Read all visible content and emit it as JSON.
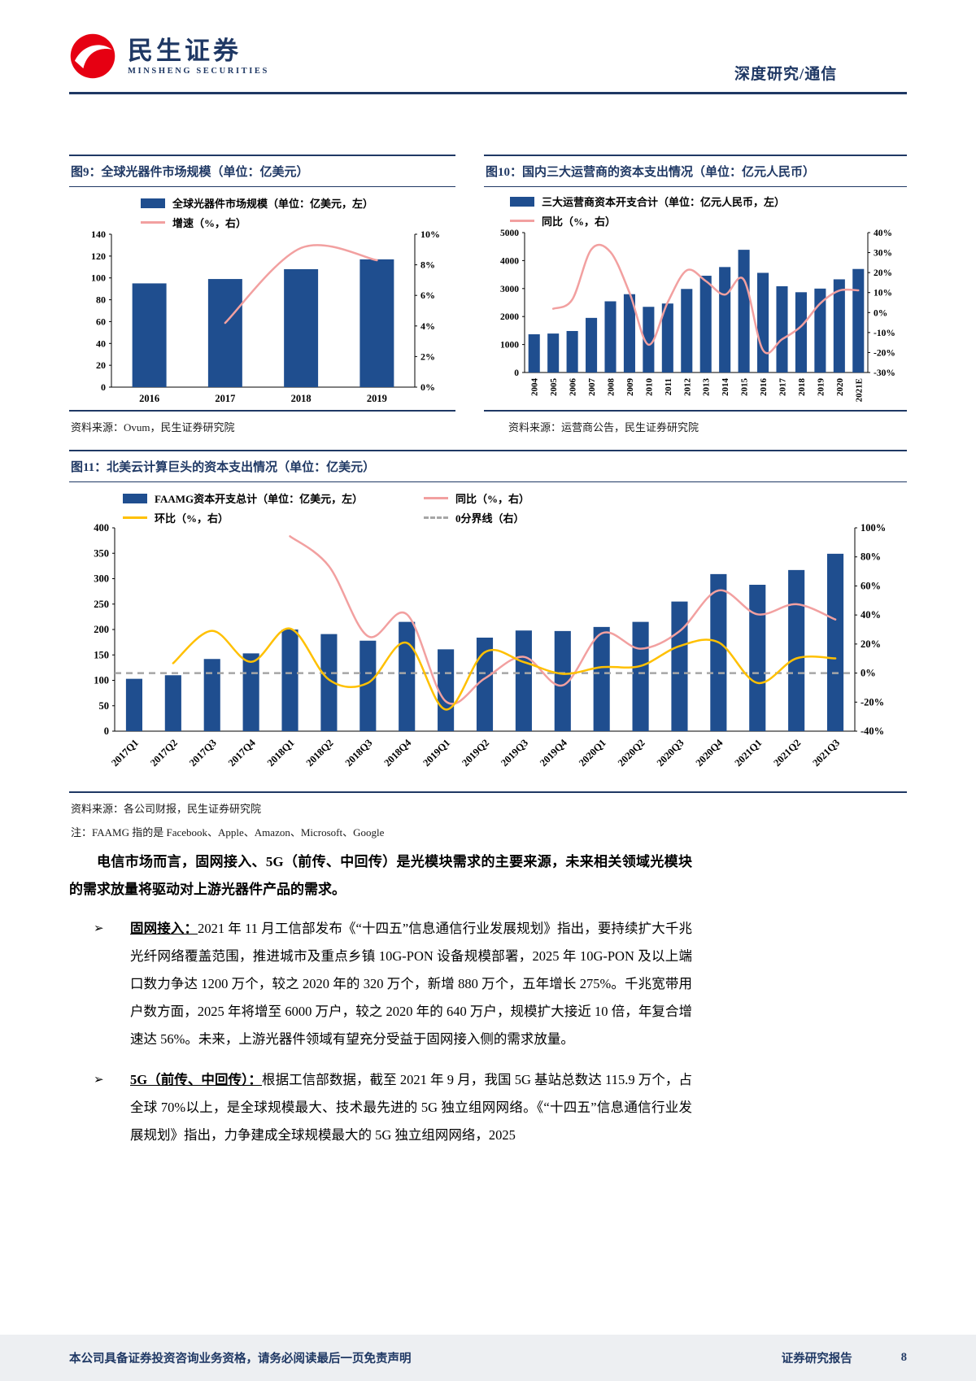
{
  "page": {
    "brand": {
      "name": "民生证券",
      "name_en": "MINSHENG SECURITIES"
    },
    "header_right": "深度研究/通信",
    "footer": {
      "left": "本公司具备证券投资咨询业务资格，请务必阅读最后一页免责声明",
      "right": "证券研究报告",
      "page_number": "8"
    }
  },
  "chart_data": [
    {
      "id": "fig9",
      "type": "bar",
      "title": "图9：全球光器件市场规模（单位：亿美元）",
      "source": "资料来源：Ovum，民生证券研究院",
      "categories": [
        "2016",
        "2017",
        "2018",
        "2019"
      ],
      "bar_series": {
        "name": "全球光器件市场规模（单位：亿美元，左）",
        "color": "#1F4E8F",
        "values": [
          95,
          99,
          108,
          117
        ]
      },
      "line_series": [
        {
          "name": "增速（%，右）",
          "color": "#F2A0A0",
          "axis": "right",
          "values": [
            null,
            4.2,
            9.1,
            8.3
          ]
        }
      ],
      "left_axis": {
        "min": 0,
        "max": 140,
        "step": 20
      },
      "right_axis": {
        "min": 0,
        "max": 10,
        "step": 2,
        "suffix": "%"
      },
      "x_label_rotation": 0,
      "legend_position": "top-left",
      "legend": [
        {
          "swatch": "bar",
          "color": "#1F4E8F",
          "label": "全球光器件市场规模（单位：亿美元，左）"
        },
        {
          "swatch": "line",
          "color": "#F2A0A0",
          "label": "增速（%，右）"
        }
      ]
    },
    {
      "id": "fig10",
      "type": "bar",
      "title": "图10：国内三大运营商的资本支出情况（单位：亿元人民币）",
      "source": "资料来源：运营商公告，民生证券研究院",
      "categories": [
        "2004",
        "2005",
        "2006",
        "2007",
        "2008",
        "2009",
        "2010",
        "2011",
        "2012",
        "2013",
        "2014",
        "2015",
        "2016",
        "2017",
        "2018",
        "2019",
        "2020",
        "2021E"
      ],
      "bar_series": {
        "name": "三大运营商资本开支合计（单位：亿元人民币，左）",
        "color": "#1F4E8F",
        "values": [
          1366,
          1392,
          1483,
          1952,
          2544,
          2799,
          2347,
          2465,
          2986,
          3458,
          3769,
          4386,
          3562,
          3083,
          2869,
          2999,
          3330,
          3700
        ]
      },
      "line_series": [
        {
          "name": "同比（%，右）",
          "color": "#F2A0A0",
          "axis": "right",
          "values": [
            null,
            1.9,
            6.5,
            31.6,
            30.3,
            10.0,
            -16.1,
            5.0,
            21.1,
            15.8,
            9.0,
            16.4,
            -18.8,
            -13.4,
            -6.9,
            4.5,
            11.0,
            11.1
          ]
        }
      ],
      "left_axis": {
        "min": 0,
        "max": 5000,
        "step": 1000
      },
      "right_axis": {
        "min": -30,
        "max": 40,
        "step": 10,
        "suffix": "%"
      },
      "x_label_rotation": 90,
      "legend_position": "top-left",
      "legend": [
        {
          "swatch": "bar",
          "color": "#1F4E8F",
          "label": "三大运营商资本开支合计（单位：亿元人民币，左）"
        },
        {
          "swatch": "line",
          "color": "#F2A0A0",
          "label": "同比（%，右）"
        }
      ]
    },
    {
      "id": "fig11",
      "type": "bar",
      "title": "图11：北美云计算巨头的资本支出情况（单位：亿美元）",
      "source": "资料来源：各公司财报，民生证券研究院",
      "note": "注：FAAMG 指的是 Facebook、Apple、Amazon、Microsoft、Google",
      "categories": [
        "2017Q1",
        "2017Q2",
        "2017Q3",
        "2017Q4",
        "2018Q1",
        "2018Q2",
        "2018Q3",
        "2018Q4",
        "2019Q1",
        "2019Q2",
        "2019Q3",
        "2019Q4",
        "2020Q1",
        "2020Q2",
        "2020Q3",
        "2020Q4",
        "2021Q1",
        "2021Q2",
        "2021Q3"
      ],
      "bar_series": {
        "name": "FAAMG资本开支总计（单位：亿美元，左）",
        "color": "#1F4E8F",
        "values": [
          103,
          110,
          142,
          153,
          200,
          191,
          178,
          215,
          161,
          184,
          198,
          197,
          205,
          215,
          255,
          309,
          288,
          317,
          349
        ]
      },
      "line_series": [
        {
          "name": "同比（%，右）",
          "color": "#F2A0A0",
          "axis": "right",
          "values": [
            null,
            null,
            null,
            null,
            94.2,
            73.6,
            25.4,
            40.5,
            -19.5,
            -3.7,
            11.2,
            -8.4,
            27.3,
            16.8,
            28.8,
            56.9,
            40.5,
            47.4,
            36.9
          ]
        },
        {
          "name": "环比（%，右）",
          "color": "#FFC000",
          "axis": "right",
          "values": [
            null,
            6.8,
            29.1,
            7.7,
            30.7,
            -4.5,
            -6.8,
            20.8,
            -25.1,
            14.3,
            7.6,
            -0.5,
            4.1,
            4.9,
            18.6,
            21.2,
            -6.8,
            10.1,
            10.1
          ]
        }
      ],
      "zero_line_right": true,
      "zero_line_color": "#A6A6A6",
      "left_axis": {
        "min": 0,
        "max": 400,
        "step": 50
      },
      "right_axis": {
        "min": -40,
        "max": 100,
        "step": 20,
        "suffix": "%"
      },
      "x_label_rotation": 45,
      "legend_position": "top",
      "legend": [
        {
          "swatch": "bar",
          "color": "#1F4E8F",
          "label": "FAAMG资本开支总计（单位：亿美元，左）"
        },
        {
          "swatch": "line",
          "color": "#F2A0A0",
          "label": "同比（%，右）"
        },
        {
          "swatch": "line",
          "color": "#FFC000",
          "label": "环比（%，右）"
        },
        {
          "swatch": "dash",
          "color": "#A6A6A6",
          "label": "0分界线（右）"
        }
      ]
    }
  ],
  "body": {
    "lead_paragraph": "电信市场而言，固网接入、5G（前传、中回传）是光模块需求的主要来源，未来相关领域光模块的需求放量将驱动对上游光器件产品的需求。",
    "bullets": [
      {
        "marker": "➢",
        "lead": "固网接入：",
        "text": "2021 年 11 月工信部发布《“十四五”信息通信行业发展规划》指出，要持续扩大千兆光纤网络覆盖范围，推进城市及重点乡镇 10G-PON 设备规模部署，2025 年 10G-PON 及以上端口数力争达 1200 万个，较之 2020 年的 320 万个，新增 880 万个，五年增长 275%。千兆宽带用户数方面，2025 年将增至 6000 万户，较之 2020 年的 640 万户，规模扩大接近 10 倍，年复合增速达 56%。未来，上游光器件领域有望充分受益于固网接入侧的需求放量。"
      },
      {
        "marker": "➢",
        "lead": "5G（前传、中回传）：",
        "text": "根据工信部数据，截至 2021 年 9 月，我国 5G 基站总数达 115.9 万个，占全球 70%以上，是全球规模最大、技术最先进的 5G 独立组网网络。《“十四五”信息通信行业发展规划》指出，力争建成全球规模最大的 5G 独立组网网络，2025"
      }
    ]
  }
}
